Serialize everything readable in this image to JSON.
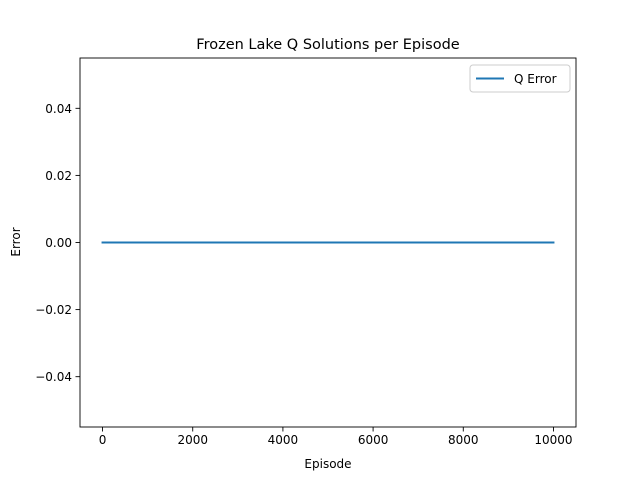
{
  "chart_data": {
    "type": "line",
    "title": "Frozen Lake Q Solutions per Episode",
    "xlabel": "Episode",
    "ylabel": "Error",
    "xlim": [
      -500,
      10500
    ],
    "ylim": [
      -0.055,
      0.055
    ],
    "xticks": [
      0,
      2000,
      4000,
      6000,
      8000,
      10000
    ],
    "xtick_labels": [
      "0",
      "2000",
      "4000",
      "6000",
      "8000",
      "10000"
    ],
    "yticks": [
      -0.04,
      -0.02,
      0.0,
      0.02,
      0.04
    ],
    "ytick_labels": [
      "−0.04",
      "−0.02",
      "0.00",
      "0.02",
      "0.04"
    ],
    "grid": false,
    "legend_position": "upper right",
    "series": [
      {
        "name": "Q Error",
        "color": "#1f77b4",
        "x": [
          0,
          10000
        ],
        "y": [
          0,
          0
        ]
      }
    ]
  }
}
